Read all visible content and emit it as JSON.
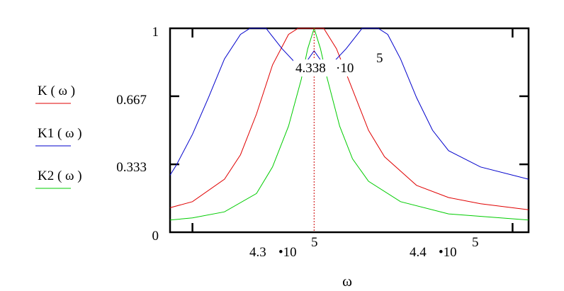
{
  "chart_data": {
    "type": "line",
    "xlabel": "ω",
    "xlim": [
      429300,
      440500
    ],
    "ylim": [
      0,
      1
    ],
    "y_ticks": [
      {
        "value": 0,
        "label": "0"
      },
      {
        "value": 0.333,
        "label": "0.333"
      },
      {
        "value": 0.667,
        "label": "0.667"
      },
      {
        "value": 1,
        "label": "1"
      }
    ],
    "x_ticks": [
      {
        "value": 430000,
        "mantissa": "4.3",
        "times": "•10",
        "exp": "5"
      },
      {
        "value": 440000,
        "mantissa": "4.4",
        "times": "•10",
        "exp": "5"
      }
    ],
    "marker": {
      "x": 433800,
      "mantissa": "4.338",
      "times": "·10",
      "exp": "5",
      "color": "#cc0000"
    },
    "grid": false,
    "series": [
      {
        "name": "K ( ω )",
        "color": "#e00000",
        "points": [
          [
            429300,
            0.12
          ],
          [
            430000,
            0.15
          ],
          [
            431000,
            0.26
          ],
          [
            431500,
            0.38
          ],
          [
            432000,
            0.58
          ],
          [
            432500,
            0.82
          ],
          [
            433000,
            0.97
          ],
          [
            433300,
            1.0
          ],
          [
            434100,
            1.0
          ],
          [
            434500,
            0.9
          ],
          [
            435000,
            0.7
          ],
          [
            435500,
            0.5
          ],
          [
            436000,
            0.37
          ],
          [
            437000,
            0.23
          ],
          [
            438000,
            0.17
          ],
          [
            439000,
            0.14
          ],
          [
            440500,
            0.11
          ]
        ]
      },
      {
        "name": "K1 ( ω )",
        "color": "#0000cc",
        "points": [
          [
            429300,
            0.28
          ],
          [
            429500,
            0.33
          ],
          [
            430000,
            0.48
          ],
          [
            430500,
            0.66
          ],
          [
            431000,
            0.85
          ],
          [
            431500,
            0.97
          ],
          [
            431800,
            1.0
          ],
          [
            432300,
            1.0
          ],
          [
            432800,
            0.9
          ],
          [
            433400,
            0.8
          ],
          [
            433800,
            0.89
          ],
          [
            434200,
            0.8
          ],
          [
            434800,
            0.9
          ],
          [
            435300,
            1.0
          ],
          [
            435800,
            1.0
          ],
          [
            436100,
            0.97
          ],
          [
            436500,
            0.85
          ],
          [
            437000,
            0.66
          ],
          [
            437500,
            0.5
          ],
          [
            438000,
            0.4
          ],
          [
            439000,
            0.32
          ],
          [
            440500,
            0.26
          ]
        ]
      },
      {
        "name": "K2 ( ω )",
        "color": "#00cc00",
        "points": [
          [
            429300,
            0.06
          ],
          [
            430000,
            0.07
          ],
          [
            431000,
            0.1
          ],
          [
            432000,
            0.19
          ],
          [
            432500,
            0.32
          ],
          [
            433000,
            0.52
          ],
          [
            433400,
            0.75
          ],
          [
            433600,
            0.9
          ],
          [
            433800,
            1.0
          ],
          [
            434000,
            0.9
          ],
          [
            434200,
            0.76
          ],
          [
            434600,
            0.52
          ],
          [
            435000,
            0.36
          ],
          [
            435500,
            0.25
          ],
          [
            436500,
            0.15
          ],
          [
            438000,
            0.09
          ],
          [
            440500,
            0.06
          ]
        ]
      }
    ]
  }
}
